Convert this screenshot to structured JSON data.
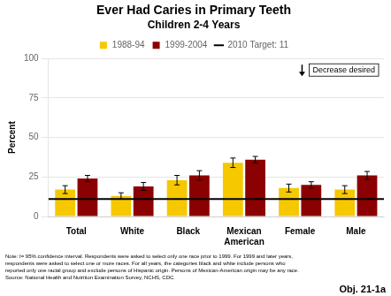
{
  "chart_data": {
    "type": "bar",
    "title": "Ever Had Caries in Primary Teeth",
    "subtitle": "Children 2-4 Years",
    "y_label": "Percent",
    "categories": [
      "Total",
      "White",
      "Black",
      "Mexican\nAmerican",
      "Female",
      "Male"
    ],
    "series": [
      {
        "name": "1988-94",
        "color": "#F5C800",
        "values": [
          17,
          13,
          23,
          34,
          18,
          17
        ],
        "errors": [
          2.5,
          2.0,
          3.0,
          3.0,
          2.5,
          2.5
        ]
      },
      {
        "name": "1999-2004",
        "color": "#8B0000",
        "values": [
          24,
          19,
          26,
          36,
          20,
          26
        ],
        "errors": [
          2.0,
          2.5,
          3.0,
          2.0,
          2.0,
          2.5
        ]
      }
    ],
    "target": {
      "label": "2010 Target: 11",
      "value": 11
    },
    "annotations": [
      "Decrease desired"
    ],
    "note": "Note: I= 95% confidence interval. Respondents were asked to select only one race prior to 1999. For 1999 and later years,\nrespondents were asked to select one or more races. For all years, the categories black and white include persons who\nreported only one racial group and exclude persons of Hispanic origin. Persons of Mexican-American origin may be any race.\nSource: National Health and Nutrition Examination Survey, NCHS, CDC.",
    "objective": "Obj. 21-1a",
    "ylim": [
      0,
      100
    ],
    "yticks": [
      0,
      25,
      50,
      75,
      100
    ],
    "grid": true,
    "legend": "top"
  }
}
